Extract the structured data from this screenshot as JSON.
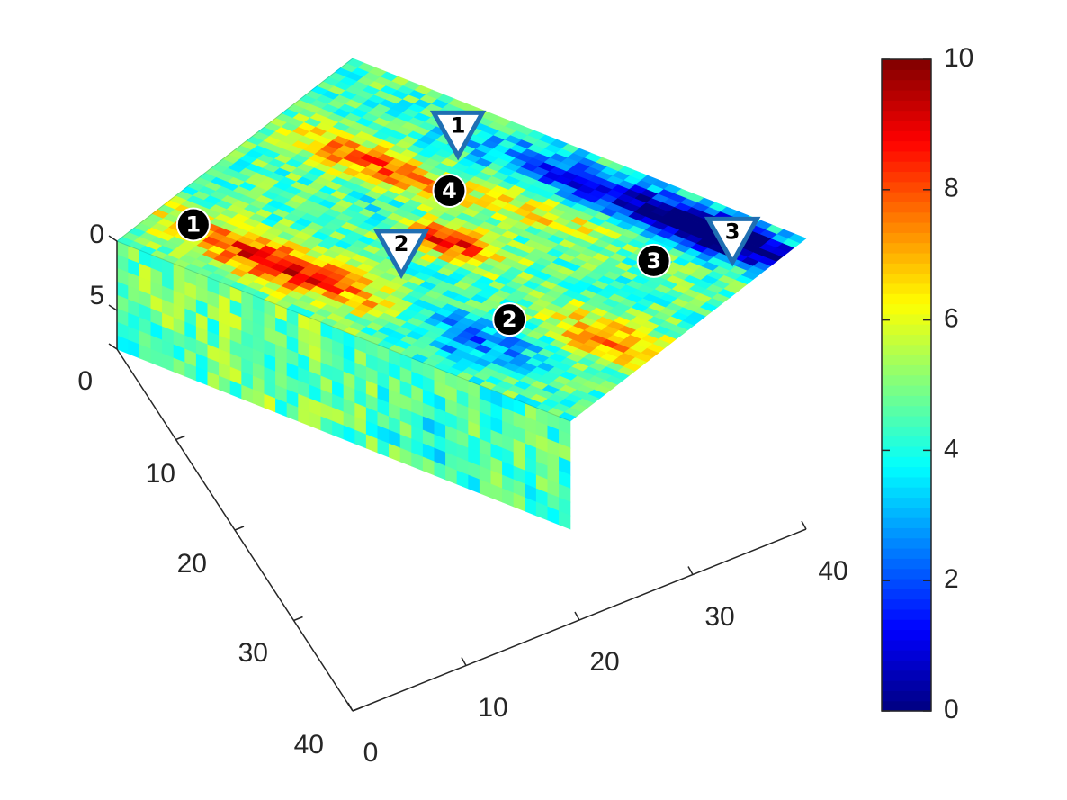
{
  "chart_data": {
    "type": "heatmap",
    "view": "3d-block",
    "grid_size": [
      40,
      40
    ],
    "depth_layers": 8,
    "x_ticks": [
      "0",
      "10",
      "20",
      "30",
      "40"
    ],
    "y_ticks": [
      "10",
      "20",
      "30",
      "40"
    ],
    "y_origin_label": "0",
    "z_ticks": [
      "0",
      "5"
    ],
    "z_bottom_label": "0",
    "colorbar": {
      "colormap": "jet",
      "range": [
        0,
        10
      ],
      "ticks": [
        "0",
        "2",
        "4",
        "6",
        "8",
        "10"
      ]
    },
    "background_value": 4.6,
    "features": [
      {
        "u": 0.28,
        "v": 0.15,
        "sigma_u": 0.18,
        "sigma_v": 0.06,
        "value": 8.8
      },
      {
        "u": 0.48,
        "v": 0.48,
        "sigma_u": 0.08,
        "sigma_v": 0.05,
        "value": 8.6
      },
      {
        "u": 0.24,
        "v": 0.65,
        "sigma_u": 0.14,
        "sigma_v": 0.05,
        "value": 7.9
      },
      {
        "u": 0.58,
        "v": 0.72,
        "sigma_u": 0.09,
        "sigma_v": 0.05,
        "value": 6.4
      },
      {
        "u": 0.9,
        "v": 0.35,
        "sigma_u": 0.1,
        "sigma_v": 0.06,
        "value": 7.6
      },
      {
        "u": 0.72,
        "v": 0.88,
        "sigma_u": 0.25,
        "sigma_v": 0.06,
        "value": 0.6
      },
      {
        "u": 0.88,
        "v": 0.9,
        "sigma_u": 0.1,
        "sigma_v": 0.05,
        "value": 1.2
      },
      {
        "u": 0.7,
        "v": 0.16,
        "sigma_u": 0.1,
        "sigma_v": 0.08,
        "value": 2.2
      },
      {
        "u": 0.35,
        "v": 0.5,
        "sigma_u": 0.05,
        "sigma_v": 0.05,
        "value": 3.4
      }
    ],
    "circle_markers": [
      {
        "label": "1",
        "u": 0.08,
        "v": 0.17
      },
      {
        "label": "2",
        "u": 0.72,
        "v": 0.28
      },
      {
        "label": "3",
        "u": 0.82,
        "v": 0.7
      },
      {
        "label": "4",
        "u": 0.39,
        "v": 0.66
      }
    ],
    "triangle_markers": [
      {
        "label": "1",
        "u": 0.3,
        "v": 0.87
      },
      {
        "label": "2",
        "u": 0.44,
        "v": 0.36
      },
      {
        "label": "3",
        "u": 0.9,
        "v": 0.88
      }
    ]
  }
}
